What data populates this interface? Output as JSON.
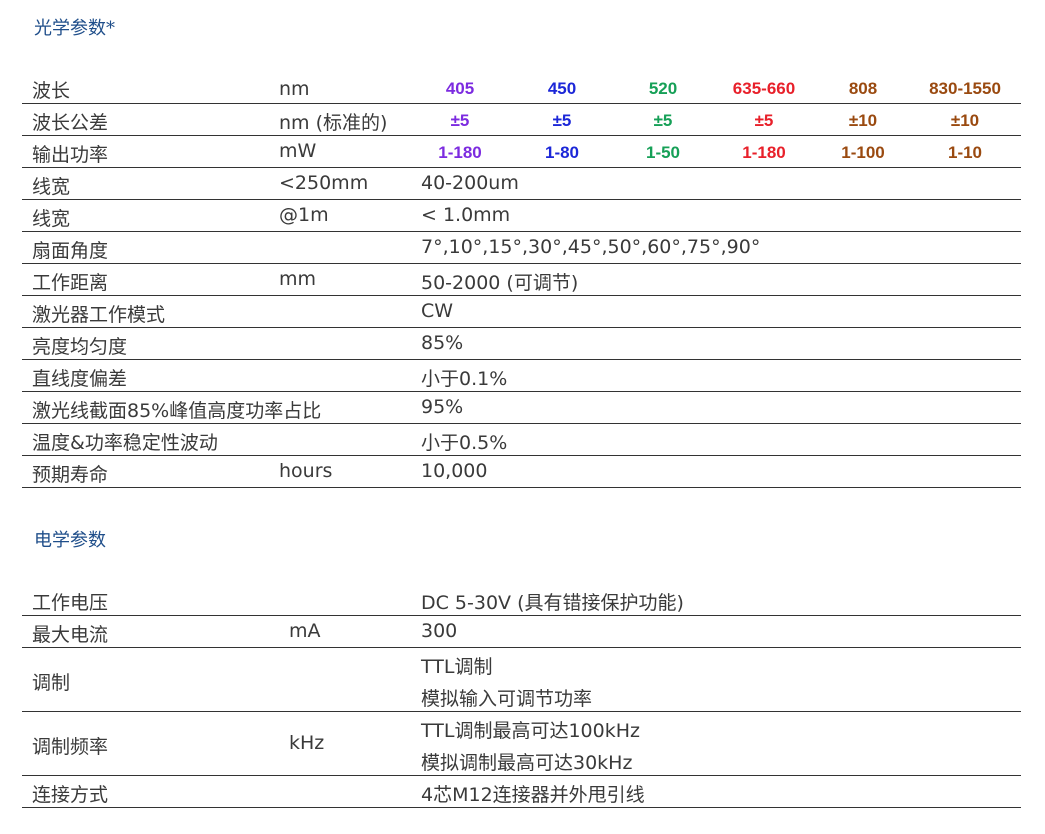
{
  "optical": {
    "title": "光学参数*",
    "wavelength_colors": [
      "#7c2be0",
      "#1c27d8",
      "#16a057",
      "#e8202a",
      "#9a4a10",
      "#9a4a10"
    ],
    "wavelength_rows": [
      {
        "param": "波长",
        "unit": "nm",
        "values": [
          "405",
          "450",
          "520",
          "635-660",
          "808",
          "830-1550"
        ]
      },
      {
        "param": "波长公差",
        "unit": "nm (标准的)",
        "values": [
          "±5",
          "±5",
          "±5",
          "±5",
          "±10",
          "±10"
        ]
      },
      {
        "param": "输出功率",
        "unit": "mW",
        "values": [
          "1-180",
          "1-80",
          "1-50",
          "1-180",
          "1-100",
          "1-10"
        ]
      }
    ],
    "rows": [
      {
        "param": "线宽",
        "unit": "<250mm",
        "value": "40-200um"
      },
      {
        "param": "线宽",
        "unit": "@1m",
        "value": "< 1.0mm"
      },
      {
        "param": "扇面角度",
        "unit": "",
        "value": "7°,10°,15°,30°,45°,50°,60°,75°,90°"
      },
      {
        "param": "工作距离",
        "unit": "mm",
        "value": "50-2000 (可调节)"
      },
      {
        "param": "激光器工作模式",
        "unit": "",
        "value": "CW"
      },
      {
        "param": "亮度均匀度",
        "unit": "",
        "value": "85%"
      },
      {
        "param": "直线度偏差",
        "unit": "",
        "value": "小于0.1%"
      },
      {
        "param": "激光线截面85%峰值高度功率占比",
        "unit": "",
        "value": "95%"
      },
      {
        "param": "温度&功率稳定性波动",
        "unit": "",
        "value": "小于0.5%"
      },
      {
        "param": "预期寿命",
        "unit": "hours",
        "value": "10,000"
      }
    ]
  },
  "electrical": {
    "title": "电学参数",
    "rows": [
      {
        "param": "工作电压",
        "unit": "",
        "lines": [
          "DC 5-30V (具有错接保护功能)"
        ]
      },
      {
        "param": "最大电流",
        "unit": "mA",
        "lines": [
          "300"
        ]
      },
      {
        "param": "调制",
        "unit": "",
        "lines": [
          "TTL调制",
          "模拟输入可调节功率"
        ]
      },
      {
        "param": "调制频率",
        "unit": "kHz",
        "lines": [
          "TTL调制最高可达100kHz",
          "模拟调制最高可达30kHz"
        ]
      },
      {
        "param": "连接方式",
        "unit": "",
        "lines": [
          "4芯M12连接器并外甩引线"
        ]
      }
    ]
  }
}
